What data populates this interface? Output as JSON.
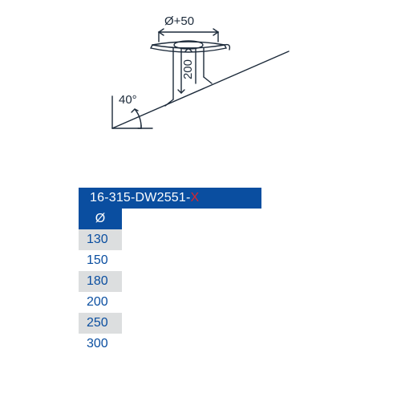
{
  "diagram": {
    "type": "technical-drawing",
    "top_dim_label": "Ø+50",
    "angle_label": "40°",
    "height_label": "200",
    "stroke_color": "#1c2a3a",
    "stroke_width": 1.4,
    "background": "#ffffff"
  },
  "table": {
    "header_text": "16-315-DW2551-",
    "header_suffix": "X",
    "header_bg": "#0a4ea0",
    "header_fg": "#ffffff",
    "suffix_color": "#d7262f",
    "diameter_symbol": "Ø",
    "row_alt_bg": "#dcdedf",
    "value_color": "#0a4ea0",
    "values": [
      {
        "v": "130",
        "alt": true
      },
      {
        "v": "150",
        "alt": false
      },
      {
        "v": "180",
        "alt": true
      },
      {
        "v": "200",
        "alt": false
      },
      {
        "v": "250",
        "alt": true
      },
      {
        "v": "300",
        "alt": false
      }
    ],
    "fontsize": 16
  }
}
